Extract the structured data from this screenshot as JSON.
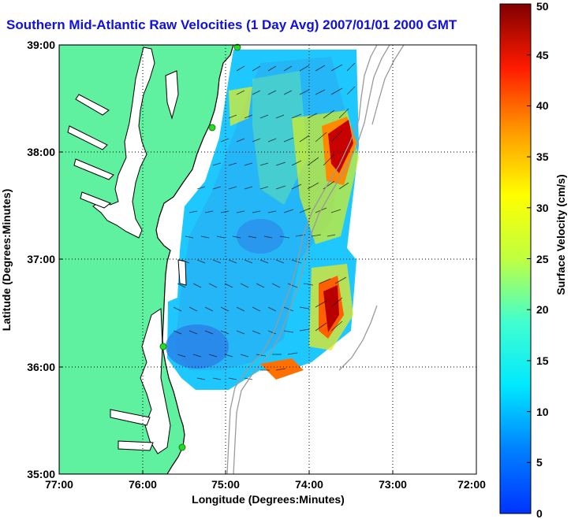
{
  "title": "Southern Mid-Atlantic Raw Velocities (1 Day Avg) 2007/01/01 2000 GMT",
  "map": {
    "xlabel": "Longitude (Degrees:Minutes)",
    "ylabel": "Latitude (Degrees:Minutes)",
    "x_ticks": [
      "77:00",
      "76:00",
      "75:00",
      "74:00",
      "73:00",
      "72:00"
    ],
    "y_ticks": [
      "39:00",
      "38:00",
      "37:00",
      "36:00",
      "35:00"
    ],
    "lon_range": [
      -77,
      -72
    ],
    "lat_range": [
      35,
      39
    ],
    "grid": true
  },
  "colorbar": {
    "label": "Surface Velocity (cm/s)",
    "ticks": [
      "0",
      "5",
      "10",
      "15",
      "20",
      "25",
      "30",
      "35",
      "40",
      "45",
      "50"
    ],
    "range": [
      0,
      50
    ],
    "colormap": "jet"
  },
  "colors": {
    "land": "#5ff0a0",
    "coast": "#000000",
    "title": "#1010e0",
    "isobath": "#9a9a9a",
    "station": "#22dd22"
  }
}
